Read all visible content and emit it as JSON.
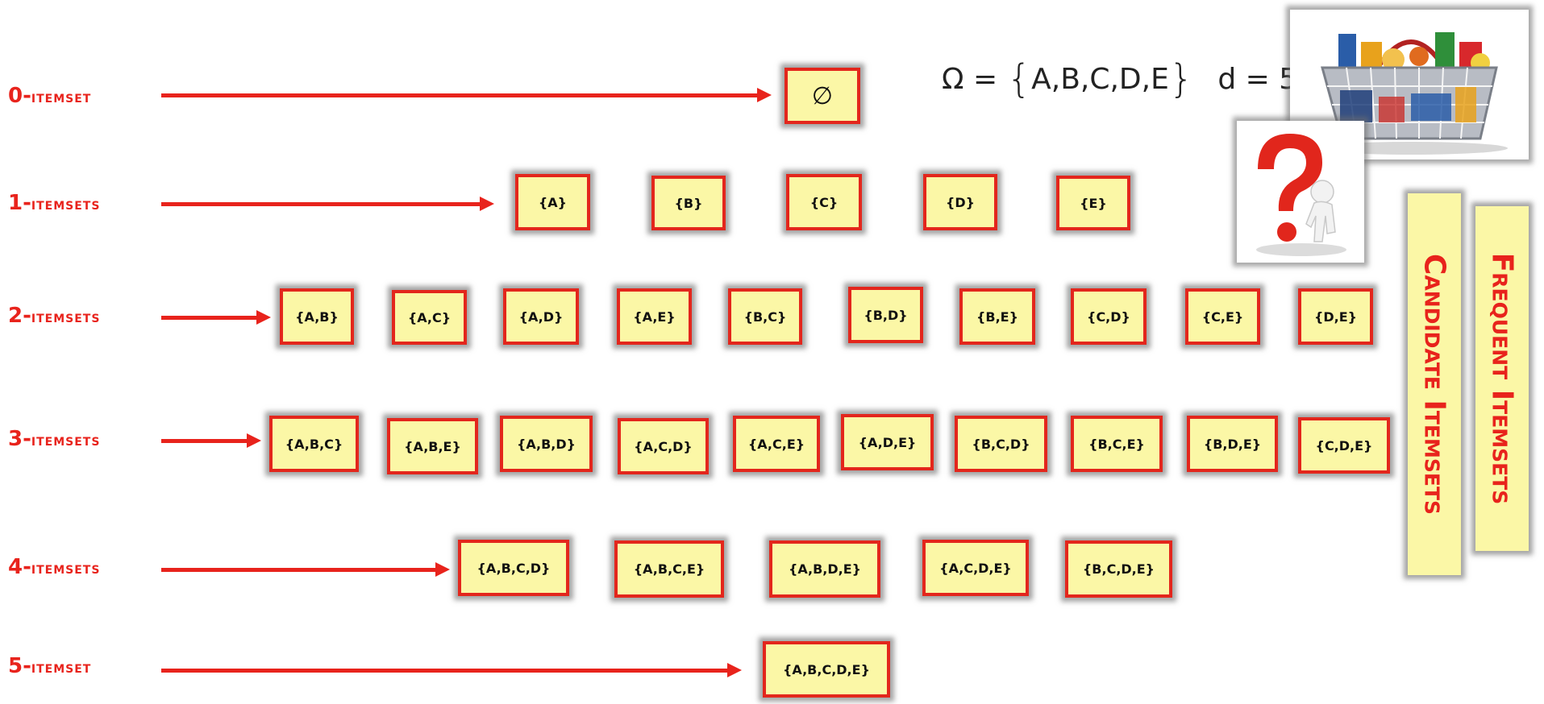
{
  "rows": {
    "r0": {
      "num": "0-",
      "word": "itemset"
    },
    "r1": {
      "num": "1-",
      "word": "itemsets"
    },
    "r2": {
      "num": "2-",
      "word": "itemsets"
    },
    "r3": {
      "num": "3-",
      "word": "itemsets"
    },
    "r4": {
      "num": "4-",
      "word": "itemsets"
    },
    "r5": {
      "num": "5-",
      "word": "itemset"
    }
  },
  "itemsets": {
    "empty": "∅",
    "one": [
      "{A}",
      "{B}",
      "{C}",
      "{D}",
      "{E}"
    ],
    "two": [
      "{A,B}",
      "{A,C}",
      "{A,D}",
      "{A,E}",
      "{B,C}",
      "{B,D}",
      "{B,E}",
      "{C,D}",
      "{C,E}",
      "{D,E}"
    ],
    "three": [
      "{A,B,C}",
      "{A,B,E}",
      "{A,B,D}",
      "{A,C,D}",
      "{A,C,E}",
      "{A,D,E}",
      "{B,C,D}",
      "{B,C,E}",
      "{B,D,E}",
      "{C,D,E}"
    ],
    "four": [
      "{A,B,C,D}",
      "{A,B,C,E}",
      "{A,B,D,E}",
      "{A,C,D,E}",
      "{B,C,D,E}"
    ],
    "five": "{A,B,C,D,E}"
  },
  "formula": {
    "omega": "Ω",
    "equals": " = ",
    "open_brace": "{",
    "items": "A,B,C,D,E",
    "close_brace": "}",
    "d_expr": "d = 5"
  },
  "side_labels": {
    "candidate": "Candidate Itemsets",
    "frequent": "Frequent Itemsets"
  },
  "colors": {
    "accent_red": "#e8231c",
    "box_fill": "#fbf7a6",
    "box_border": "#e3261c"
  },
  "icons": [
    "shopping-basket-icon",
    "question-mark-figure-icon"
  ]
}
